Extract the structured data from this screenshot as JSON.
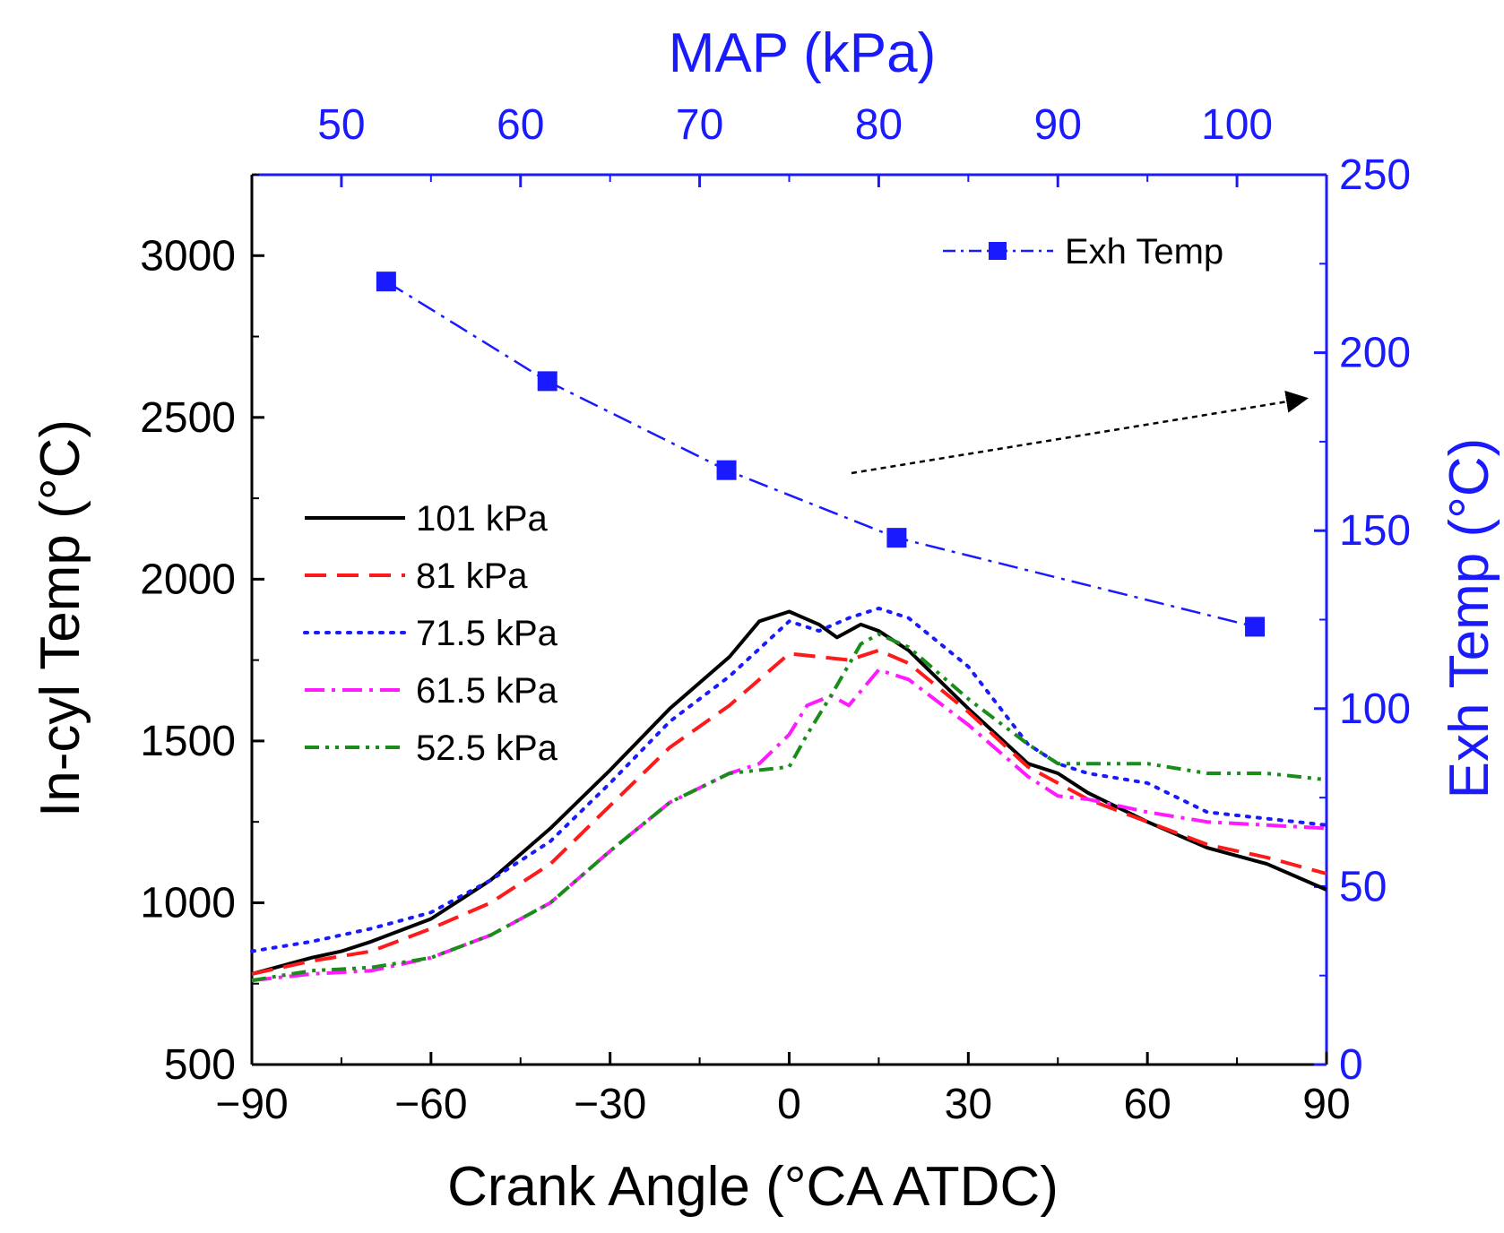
{
  "chart_data": {
    "type": "line",
    "x_axis": {
      "label": "Crank Angle (°CA ATDC)",
      "range": [
        -90,
        90
      ],
      "ticks": [
        -90,
        -60,
        -30,
        0,
        30,
        60,
        90
      ],
      "tick_labels": [
        "−90",
        "−60",
        "−30",
        "0",
        "30",
        "60",
        "90"
      ]
    },
    "y_axis_left": {
      "label": "In-cyl Temp (°C)",
      "range": [
        500,
        3250
      ],
      "ticks": [
        500,
        1000,
        1500,
        2000,
        2500,
        3000
      ],
      "tick_labels": [
        "500",
        "1000",
        "1500",
        "2000",
        "2500",
        "3000"
      ]
    },
    "x_axis_top": {
      "label": "MAP (kPa)",
      "range": [
        45,
        105
      ],
      "ticks": [
        50,
        60,
        70,
        80,
        90,
        100
      ],
      "tick_labels": [
        "50",
        "60",
        "70",
        "80",
        "90",
        "100"
      ],
      "color": "#1a1aff"
    },
    "y_axis_right": {
      "label": "Exh Temp (°C)",
      "range": [
        0,
        250
      ],
      "ticks": [
        0,
        50,
        100,
        150,
        200,
        250
      ],
      "tick_labels": [
        "0",
        "50",
        "100",
        "150",
        "200",
        "250"
      ],
      "color": "#1a1aff"
    },
    "series": [
      {
        "name": "101 kPa",
        "color": "#000000",
        "dash": "solid",
        "x": [
          -90,
          -80,
          -75,
          -70,
          -60,
          -50,
          -40,
          -30,
          -20,
          -10,
          -5,
          0,
          5,
          8,
          12,
          15,
          20,
          30,
          40,
          45,
          50,
          60,
          70,
          80,
          90
        ],
        "y": [
          780,
          830,
          850,
          880,
          950,
          1070,
          1230,
          1410,
          1600,
          1760,
          1870,
          1900,
          1860,
          1820,
          1860,
          1840,
          1780,
          1600,
          1430,
          1400,
          1340,
          1250,
          1170,
          1120,
          1040
        ]
      },
      {
        "name": "81 kPa",
        "color": "#ff1a1a",
        "dash": "dashed",
        "x": [
          -90,
          -80,
          -70,
          -60,
          -50,
          -40,
          -30,
          -20,
          -10,
          0,
          5,
          10,
          15,
          20,
          30,
          40,
          50,
          60,
          70,
          80,
          90
        ],
        "y": [
          780,
          820,
          850,
          920,
          1000,
          1120,
          1300,
          1480,
          1610,
          1770,
          1760,
          1750,
          1780,
          1740,
          1590,
          1420,
          1320,
          1250,
          1180,
          1140,
          1090
        ]
      },
      {
        "name": "71.5 kPa",
        "color": "#1a1aff",
        "dash": "dotted",
        "x": [
          -90,
          -80,
          -70,
          -60,
          -50,
          -40,
          -30,
          -20,
          -10,
          0,
          5,
          10,
          15,
          20,
          30,
          40,
          45,
          50,
          60,
          70,
          80,
          90
        ],
        "y": [
          850,
          880,
          920,
          970,
          1070,
          1190,
          1370,
          1560,
          1700,
          1870,
          1840,
          1880,
          1910,
          1880,
          1730,
          1490,
          1430,
          1400,
          1370,
          1280,
          1260,
          1240
        ]
      },
      {
        "name": "61.5 kPa",
        "color": "#ff1aff",
        "dash": "dashdot",
        "x": [
          -90,
          -80,
          -70,
          -60,
          -50,
          -40,
          -30,
          -20,
          -10,
          -5,
          0,
          3,
          7,
          10,
          15,
          20,
          30,
          40,
          45,
          50,
          60,
          70,
          80,
          90
        ],
        "y": [
          760,
          780,
          790,
          830,
          900,
          1000,
          1160,
          1310,
          1400,
          1430,
          1520,
          1610,
          1640,
          1610,
          1720,
          1690,
          1550,
          1390,
          1330,
          1320,
          1280,
          1250,
          1240,
          1230
        ]
      },
      {
        "name": "52.5 kPa",
        "color": "#1a8c1a",
        "dash": "dashdotdot",
        "x": [
          -90,
          -80,
          -70,
          -60,
          -50,
          -40,
          -30,
          -20,
          -10,
          -5,
          0,
          3,
          7,
          12,
          15,
          20,
          30,
          40,
          45,
          50,
          60,
          70,
          80,
          90
        ],
        "y": [
          760,
          790,
          800,
          830,
          900,
          1000,
          1160,
          1310,
          1400,
          1410,
          1420,
          1520,
          1640,
          1800,
          1830,
          1790,
          1630,
          1490,
          1430,
          1430,
          1430,
          1400,
          1400,
          1380
        ]
      },
      {
        "name": "Exh Temp",
        "color": "#1a1aff",
        "dash": "dashdot",
        "marker": "square",
        "axis": "top-right",
        "x": [
          52.5,
          61.5,
          71.5,
          81,
          101
        ],
        "y": [
          220,
          192,
          167,
          148,
          123
        ]
      }
    ],
    "legend_main": [
      "101 kPa",
      "81 kPa",
      "71.5 kPa",
      "61.5 kPa",
      "52.5 kPa"
    ],
    "legend_exh": "Exh Temp",
    "annotation": "dashed arrow pointing from Exh Temp curve to right axis"
  }
}
